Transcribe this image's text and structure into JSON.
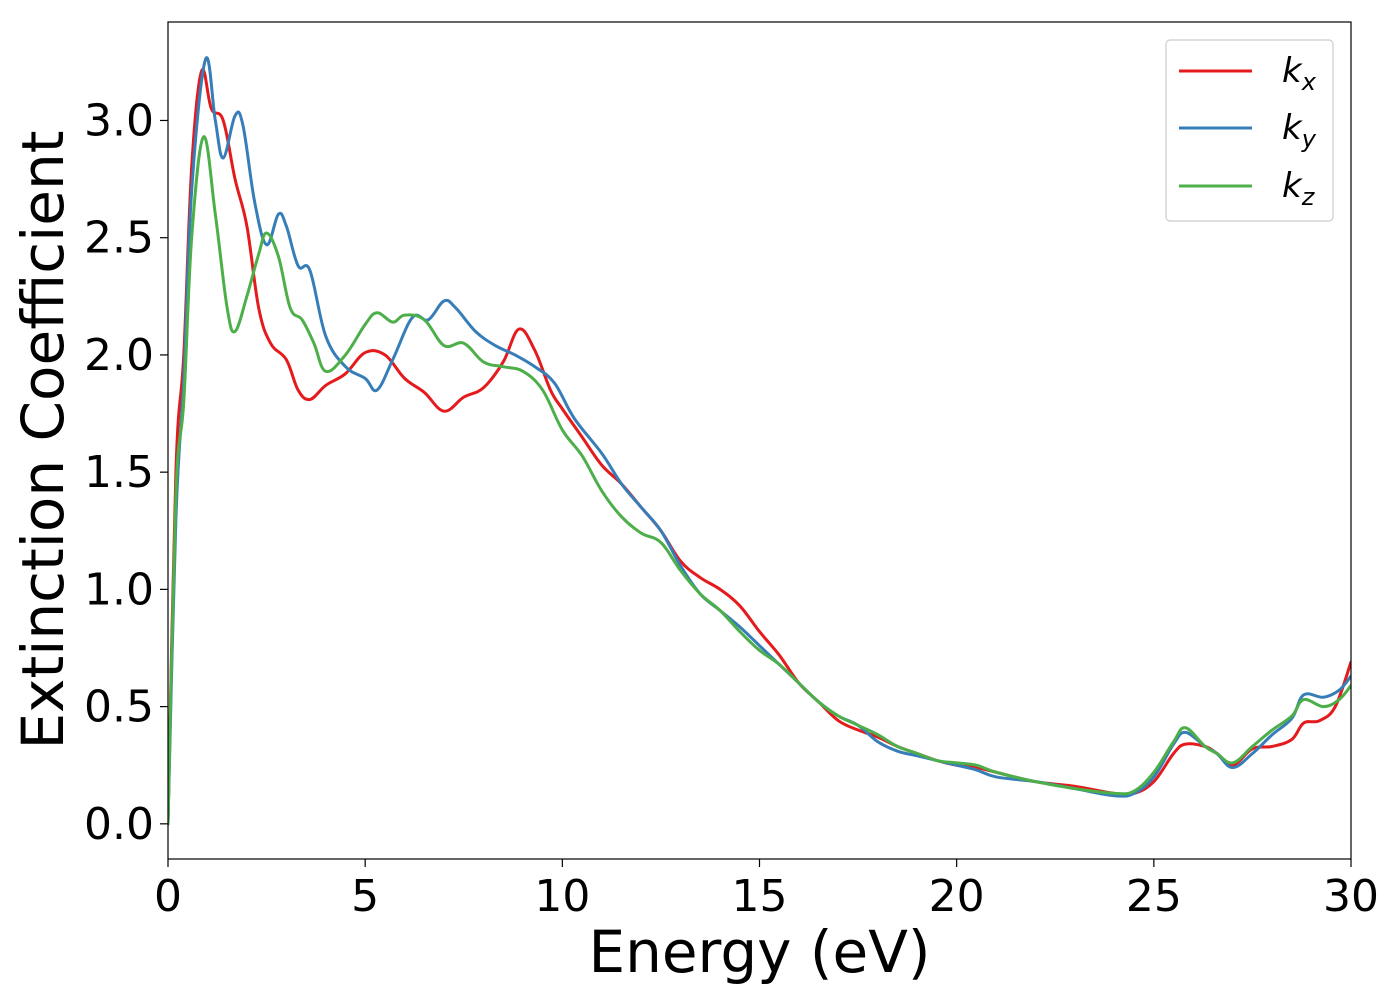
{
  "chart_data": {
    "type": "line",
    "xlabel": "Energy (eV)",
    "ylabel": "Extinction Coefficient",
    "xlim": [
      0,
      30
    ],
    "ylim": [
      -0.15,
      3.42
    ],
    "xticks": [
      "0",
      "5",
      "10",
      "15",
      "20",
      "25",
      "30"
    ],
    "yticks": [
      "0.0",
      "0.5",
      "1.0",
      "1.5",
      "2.0",
      "2.5",
      "3.0"
    ],
    "grid": false,
    "legend_position": "top-right",
    "series": [
      {
        "name": "kx",
        "label_base": "k",
        "label_sub": "x",
        "color": "#e41a1c",
        "points": [
          [
            0,
            0
          ],
          [
            0.2,
            1.5
          ],
          [
            0.4,
            2.0
          ],
          [
            0.6,
            2.8
          ],
          [
            0.85,
            3.21
          ],
          [
            1.1,
            3.05
          ],
          [
            1.4,
            3.0
          ],
          [
            1.7,
            2.75
          ],
          [
            2.0,
            2.55
          ],
          [
            2.3,
            2.2
          ],
          [
            2.6,
            2.05
          ],
          [
            3.0,
            1.98
          ],
          [
            3.3,
            1.85
          ],
          [
            3.6,
            1.81
          ],
          [
            4.0,
            1.87
          ],
          [
            4.5,
            1.92
          ],
          [
            5.0,
            2.01
          ],
          [
            5.5,
            2.0
          ],
          [
            6.0,
            1.9
          ],
          [
            6.5,
            1.84
          ],
          [
            7.0,
            1.76
          ],
          [
            7.5,
            1.82
          ],
          [
            8.0,
            1.86
          ],
          [
            8.5,
            1.97
          ],
          [
            8.9,
            2.11
          ],
          [
            9.3,
            2.02
          ],
          [
            9.7,
            1.85
          ],
          [
            10.0,
            1.77
          ],
          [
            10.5,
            1.65
          ],
          [
            11.0,
            1.53
          ],
          [
            11.5,
            1.45
          ],
          [
            12.0,
            1.35
          ],
          [
            12.5,
            1.25
          ],
          [
            13.0,
            1.12
          ],
          [
            13.5,
            1.05
          ],
          [
            14.0,
            1.0
          ],
          [
            14.5,
            0.93
          ],
          [
            15.0,
            0.82
          ],
          [
            15.5,
            0.72
          ],
          [
            16.0,
            0.6
          ],
          [
            16.5,
            0.52
          ],
          [
            17.0,
            0.44
          ],
          [
            17.5,
            0.4
          ],
          [
            18.0,
            0.37
          ],
          [
            18.5,
            0.33
          ],
          [
            19.0,
            0.3
          ],
          [
            19.5,
            0.27
          ],
          [
            20.0,
            0.25
          ],
          [
            20.5,
            0.24
          ],
          [
            21.0,
            0.22
          ],
          [
            22.0,
            0.18
          ],
          [
            23.0,
            0.16
          ],
          [
            24.0,
            0.13
          ],
          [
            24.5,
            0.13
          ],
          [
            25.0,
            0.18
          ],
          [
            25.5,
            0.3
          ],
          [
            25.8,
            0.34
          ],
          [
            26.3,
            0.33
          ],
          [
            26.6,
            0.3
          ],
          [
            27.0,
            0.25
          ],
          [
            27.5,
            0.32
          ],
          [
            28.0,
            0.33
          ],
          [
            28.5,
            0.36
          ],
          [
            28.8,
            0.43
          ],
          [
            29.2,
            0.44
          ],
          [
            29.6,
            0.5
          ],
          [
            30.0,
            0.69
          ]
        ]
      },
      {
        "name": "ky",
        "label_base": "k",
        "label_sub": "y",
        "color": "#377eb8",
        "points": [
          [
            0,
            0
          ],
          [
            0.2,
            1.3
          ],
          [
            0.4,
            1.9
          ],
          [
            0.6,
            2.7
          ],
          [
            0.95,
            3.26
          ],
          [
            1.2,
            3.0
          ],
          [
            1.4,
            2.84
          ],
          [
            1.7,
            3.02
          ],
          [
            1.9,
            2.98
          ],
          [
            2.2,
            2.65
          ],
          [
            2.5,
            2.47
          ],
          [
            2.8,
            2.6
          ],
          [
            3.0,
            2.55
          ],
          [
            3.3,
            2.38
          ],
          [
            3.6,
            2.36
          ],
          [
            4.0,
            2.08
          ],
          [
            4.5,
            1.95
          ],
          [
            5.0,
            1.9
          ],
          [
            5.3,
            1.85
          ],
          [
            5.7,
            1.98
          ],
          [
            6.2,
            2.16
          ],
          [
            6.6,
            2.15
          ],
          [
            7.0,
            2.23
          ],
          [
            7.3,
            2.2
          ],
          [
            7.8,
            2.1
          ],
          [
            8.3,
            2.04
          ],
          [
            8.8,
            2.0
          ],
          [
            9.3,
            1.95
          ],
          [
            9.8,
            1.88
          ],
          [
            10.3,
            1.73
          ],
          [
            11.0,
            1.58
          ],
          [
            11.5,
            1.45
          ],
          [
            12.0,
            1.35
          ],
          [
            12.5,
            1.25
          ],
          [
            13.0,
            1.1
          ],
          [
            13.5,
            0.98
          ],
          [
            14.0,
            0.91
          ],
          [
            14.5,
            0.84
          ],
          [
            15.0,
            0.76
          ],
          [
            15.5,
            0.68
          ],
          [
            16.0,
            0.6
          ],
          [
            16.5,
            0.52
          ],
          [
            17.0,
            0.46
          ],
          [
            17.5,
            0.42
          ],
          [
            18.0,
            0.35
          ],
          [
            18.5,
            0.31
          ],
          [
            19.0,
            0.29
          ],
          [
            19.5,
            0.27
          ],
          [
            20.0,
            0.25
          ],
          [
            20.5,
            0.23
          ],
          [
            21.0,
            0.2
          ],
          [
            22.0,
            0.18
          ],
          [
            23.0,
            0.15
          ],
          [
            24.0,
            0.12
          ],
          [
            24.5,
            0.13
          ],
          [
            25.0,
            0.2
          ],
          [
            25.5,
            0.34
          ],
          [
            25.8,
            0.39
          ],
          [
            26.3,
            0.33
          ],
          [
            26.6,
            0.3
          ],
          [
            27.0,
            0.24
          ],
          [
            27.5,
            0.3
          ],
          [
            28.0,
            0.38
          ],
          [
            28.5,
            0.45
          ],
          [
            28.8,
            0.55
          ],
          [
            29.3,
            0.54
          ],
          [
            29.7,
            0.57
          ],
          [
            30.0,
            0.63
          ]
        ]
      },
      {
        "name": "kz",
        "label_base": "k",
        "label_sub": "z",
        "color": "#4daf4a",
        "points": [
          [
            0,
            0
          ],
          [
            0.2,
            1.4
          ],
          [
            0.4,
            1.8
          ],
          [
            0.6,
            2.5
          ],
          [
            0.9,
            2.93
          ],
          [
            1.2,
            2.6
          ],
          [
            1.5,
            2.2
          ],
          [
            1.7,
            2.1
          ],
          [
            2.0,
            2.25
          ],
          [
            2.3,
            2.43
          ],
          [
            2.5,
            2.52
          ],
          [
            2.8,
            2.42
          ],
          [
            3.1,
            2.2
          ],
          [
            3.4,
            2.15
          ],
          [
            3.7,
            2.05
          ],
          [
            4.0,
            1.93
          ],
          [
            4.5,
            2.0
          ],
          [
            5.0,
            2.13
          ],
          [
            5.3,
            2.18
          ],
          [
            5.7,
            2.14
          ],
          [
            6.0,
            2.17
          ],
          [
            6.5,
            2.15
          ],
          [
            7.0,
            2.04
          ],
          [
            7.5,
            2.05
          ],
          [
            8.0,
            1.97
          ],
          [
            8.5,
            1.95
          ],
          [
            9.0,
            1.93
          ],
          [
            9.5,
            1.85
          ],
          [
            10.0,
            1.68
          ],
          [
            10.5,
            1.57
          ],
          [
            11.0,
            1.42
          ],
          [
            11.5,
            1.31
          ],
          [
            12.0,
            1.24
          ],
          [
            12.5,
            1.2
          ],
          [
            13.0,
            1.08
          ],
          [
            13.5,
            0.98
          ],
          [
            14.0,
            0.91
          ],
          [
            14.5,
            0.82
          ],
          [
            15.0,
            0.74
          ],
          [
            15.5,
            0.68
          ],
          [
            16.0,
            0.6
          ],
          [
            16.5,
            0.52
          ],
          [
            17.0,
            0.46
          ],
          [
            17.5,
            0.42
          ],
          [
            18.0,
            0.38
          ],
          [
            18.5,
            0.33
          ],
          [
            19.0,
            0.3
          ],
          [
            19.5,
            0.27
          ],
          [
            20.0,
            0.26
          ],
          [
            20.5,
            0.25
          ],
          [
            21.0,
            0.22
          ],
          [
            22.0,
            0.18
          ],
          [
            23.0,
            0.15
          ],
          [
            24.0,
            0.13
          ],
          [
            24.5,
            0.14
          ],
          [
            25.0,
            0.22
          ],
          [
            25.5,
            0.35
          ],
          [
            25.8,
            0.41
          ],
          [
            26.3,
            0.33
          ],
          [
            26.6,
            0.3
          ],
          [
            27.0,
            0.26
          ],
          [
            27.5,
            0.33
          ],
          [
            28.0,
            0.4
          ],
          [
            28.5,
            0.46
          ],
          [
            28.8,
            0.53
          ],
          [
            29.3,
            0.5
          ],
          [
            29.7,
            0.53
          ],
          [
            30.0,
            0.59
          ]
        ]
      }
    ]
  }
}
